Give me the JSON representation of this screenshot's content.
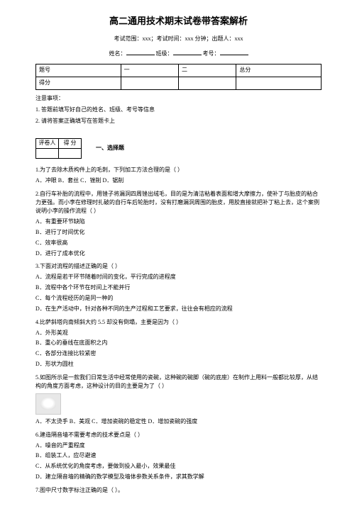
{
  "title": "高二通用技术期末试卷带答案解析",
  "subtitle": "考试范围：xxx；考试时间：xxx 分钟；出题人：xxx",
  "info": {
    "name_label": "姓名：",
    "class_label": "班级：",
    "id_label": "考号："
  },
  "score_table": {
    "headers": [
      "题号",
      "一",
      "二",
      "总分"
    ],
    "row_label": "得分"
  },
  "notes": {
    "heading": "注意事项：",
    "n1": "1. 答题前填写好自己的姓名、班级、考号等信息",
    "n2": "2. 请将答案正确填写在答题卡上"
  },
  "judge": {
    "h1": "评卷人",
    "h2": "得 分"
  },
  "section1": "一、选择题",
  "q1": {
    "text": "1.为了去除木质构件上的毛刺，下列加工方法合理的是（ ）",
    "opts": "A．冲眼  B．套丝  C．锉削  D．锯削"
  },
  "q2": {
    "text": "2.自行车补胎的流程中，用锉子将漏洞四周锉出绒毛，目的是为清洁粘着表面和增大摩擦力，使补丁与胎皮的粘合力更强。而小李在修理时扎破的自行车后轮胎时，没有打磨漏洞周围的胎皮，用胶直接就把补丁粘上去，这个案例说明小李的操作流程（ ）",
    "a": "A．有重要环节缺陷",
    "b": "B．进行了时间优化",
    "c": "C．效率很高",
    "d": "D．进行了成本优化"
  },
  "q3": {
    "text": "3.下面对流程的描述正确的是（ ）",
    "a": "A．流程是若干环节随着时间的变化，平行完成的进程度",
    "b": "B．流程中各个环节在时间上不能并行",
    "c": "C．每个流程经历的是同一种的",
    "d": "D．在生产活动中，针对各种不同的生产过程和工艺要求，往往会有相应的流程"
  },
  "q4": {
    "text": "4.比萨斜塔向南倾斜大约 5.5 却没有倒塌，主要是因为（ ）",
    "a": "A．外形美观",
    "b": "B．重心的垂线在底面积之内",
    "c": "C．各部分连接比较紧密",
    "d": "D．形状为圆柱"
  },
  "q5": {
    "text": "5.如图所示是一款我们日常生活中经常使用的瓷碗，这种碗的碗脚（碗的底座）在制作上用料一般都比较厚，从结构的角度方面考虑，这种设计的目的主要是为了（ ）",
    "opts": "A．不太烫手  B．美观  C．增加瓷碗的稳定性  D．增加瓷碗的强度"
  },
  "q6": {
    "text": "6.建造隔音墙不需要考虑的技术要点是（ ）",
    "a": "A．噪音的严重程度",
    "b": "B．组装工人，应尽避速",
    "c": "C．从系统优化的角度考虑，要做到投入最小，效果最佳",
    "d": "D．建立隔音墙的精确的数学模型及墙体参数关系条件，求其数学解"
  },
  "q7": {
    "text": "7.图中尺寸数字标注正确的是（ ）。"
  }
}
